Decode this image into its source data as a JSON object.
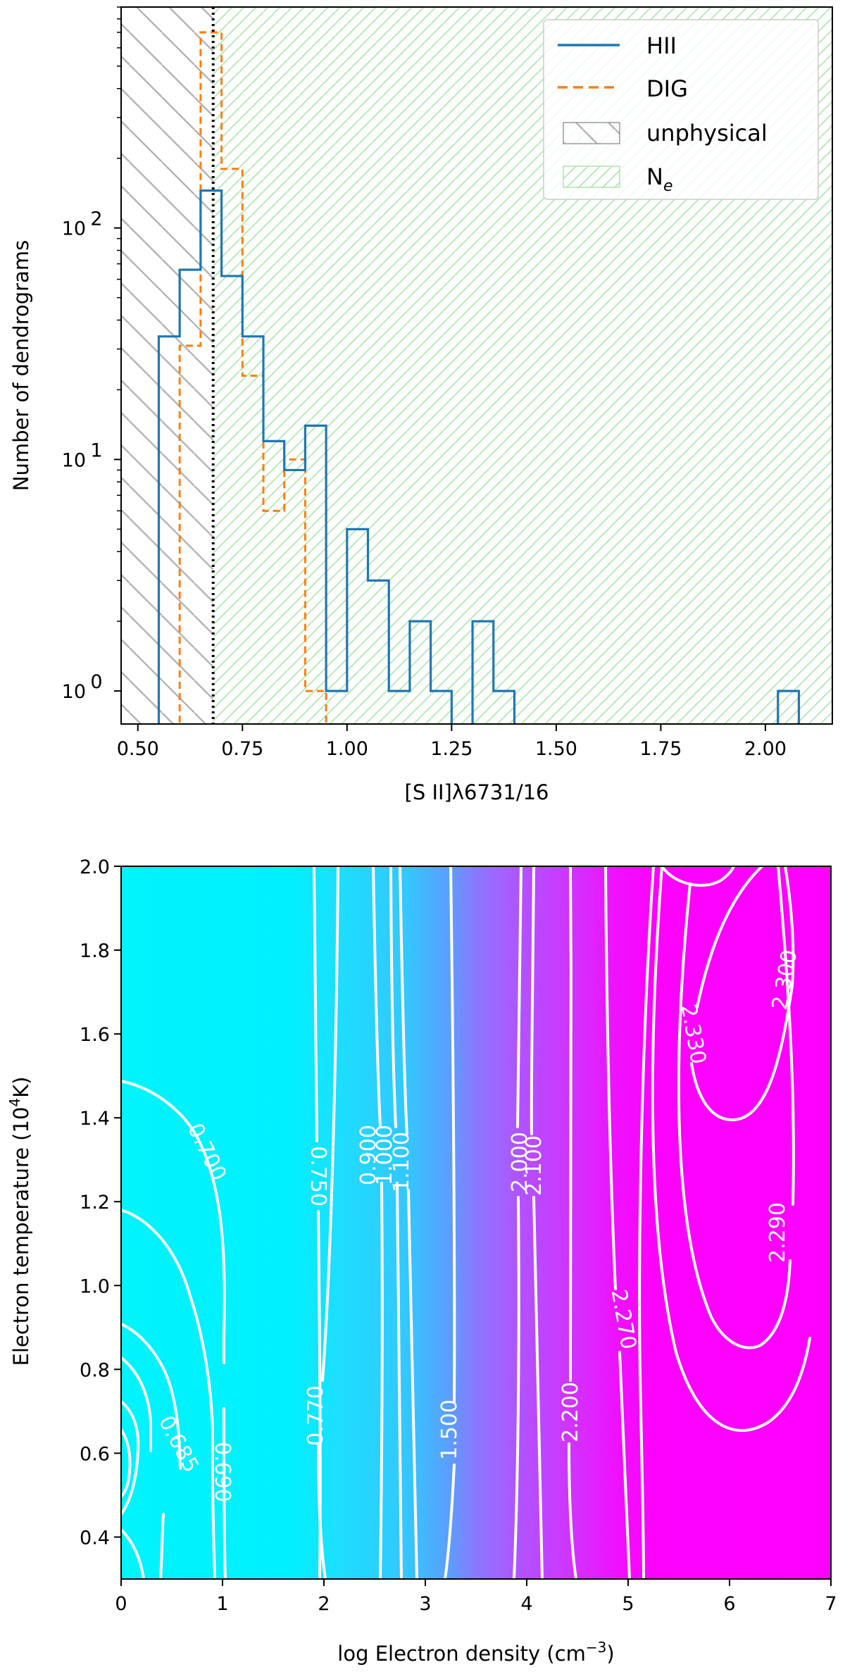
{
  "chart_data": [
    {
      "type": "histogram",
      "xlabel": "[S II]λ6731/16",
      "ylabel": "Number of dendrograms",
      "yscale": "log",
      "xlim": [
        0.46,
        2.16
      ],
      "ylim": [
        0.72,
        900
      ],
      "xticks": [
        0.5,
        0.75,
        1.0,
        1.25,
        1.5,
        1.75,
        2.0
      ],
      "xtick_labels": [
        "0.50",
        "0.75",
        "1.00",
        "1.25",
        "1.50",
        "1.75",
        "2.00"
      ],
      "yticks": [
        1,
        10,
        100
      ],
      "ytick_labels": [
        "10",
        "10",
        "10"
      ],
      "ytick_exponents": [
        "0",
        "1",
        "2"
      ],
      "reference_line_x": 0.68,
      "shaded_regions": [
        {
          "name": "unphysical",
          "x_range": [
            0.46,
            0.68
          ],
          "color": "#b0b0b0"
        },
        {
          "name": "Ne",
          "x_range": [
            0.68,
            2.16
          ],
          "color": "#90e090"
        }
      ],
      "legend_position": "top-right",
      "legend": [
        {
          "label": "HII",
          "style": "solid-line",
          "color": "#1f77b4"
        },
        {
          "label": "DIG",
          "style": "dashed-line",
          "color": "#ff7f0e"
        },
        {
          "label": "unphysical",
          "style": "hatch-box",
          "color": "#909090"
        },
        {
          "label": "N",
          "subscript": "e",
          "style": "hatch-box",
          "color": "#8fdc8f"
        }
      ],
      "series": [
        {
          "name": "HII",
          "color": "#1f77b4",
          "style": "step-solid",
          "bins": [
            {
              "x0": 0.55,
              "x1": 0.6,
              "count": 34
            },
            {
              "x0": 0.6,
              "x1": 0.65,
              "count": 66
            },
            {
              "x0": 0.65,
              "x1": 0.7,
              "count": 145
            },
            {
              "x0": 0.7,
              "x1": 0.75,
              "count": 62
            },
            {
              "x0": 0.75,
              "x1": 0.8,
              "count": 34
            },
            {
              "x0": 0.8,
              "x1": 0.85,
              "count": 12
            },
            {
              "x0": 0.85,
              "x1": 0.9,
              "count": 9
            },
            {
              "x0": 0.9,
              "x1": 0.95,
              "count": 14
            },
            {
              "x0": 0.95,
              "x1": 1.0,
              "count": 1
            },
            {
              "x0": 1.0,
              "x1": 1.05,
              "count": 5
            },
            {
              "x0": 1.05,
              "x1": 1.1,
              "count": 3
            },
            {
              "x0": 1.1,
              "x1": 1.15,
              "count": 1
            },
            {
              "x0": 1.15,
              "x1": 1.2,
              "count": 2
            },
            {
              "x0": 1.2,
              "x1": 1.25,
              "count": 1
            },
            {
              "x0": 1.25,
              "x1": 1.3,
              "count": 0
            },
            {
              "x0": 1.3,
              "x1": 1.35,
              "count": 2
            },
            {
              "x0": 1.35,
              "x1": 1.4,
              "count": 1
            },
            {
              "x0": 2.03,
              "x1": 2.08,
              "count": 1
            }
          ]
        },
        {
          "name": "DIG",
          "color": "#ff7f0e",
          "style": "step-dashed",
          "bins": [
            {
              "x0": 0.6,
              "x1": 0.65,
              "count": 31
            },
            {
              "x0": 0.65,
              "x1": 0.7,
              "count": 700
            },
            {
              "x0": 0.7,
              "x1": 0.75,
              "count": 180
            },
            {
              "x0": 0.75,
              "x1": 0.8,
              "count": 23
            },
            {
              "x0": 0.8,
              "x1": 0.85,
              "count": 6
            },
            {
              "x0": 0.85,
              "x1": 0.9,
              "count": 10
            },
            {
              "x0": 0.9,
              "x1": 0.95,
              "count": 1
            }
          ]
        }
      ]
    },
    {
      "type": "contour",
      "xlabel": "log Electron density (cm",
      "xlabel_exponent": "−3",
      "xlabel_suffix": ")",
      "ylabel": "Electron temperature (10",
      "ylabel_exponent": "4",
      "ylabel_suffix": "K)",
      "xlim": [
        0,
        7
      ],
      "ylim": [
        0.3,
        2.0
      ],
      "xticks": [
        0,
        1,
        2,
        3,
        4,
        5,
        6,
        7
      ],
      "xtick_labels": [
        "0",
        "1",
        "2",
        "3",
        "4",
        "5",
        "6",
        "7"
      ],
      "yticks": [
        0.4,
        0.6,
        0.8,
        1.0,
        1.2,
        1.4,
        1.6,
        1.8,
        2.0
      ],
      "ytick_labels": [
        "0.4",
        "0.6",
        "0.8",
        "1.0",
        "1.2",
        "1.4",
        "1.6",
        "1.8",
        "2.0"
      ],
      "colormap": "cool",
      "colormap_stops": [
        "#00ffff",
        "#ff00ff"
      ],
      "line_color": "#ffffff",
      "contour_levels": [
        "0.685",
        "0.690",
        "0.700",
        "0.750",
        "0.770",
        "0.900",
        "1.000",
        "1.100",
        "1.500",
        "2.000",
        "2.100",
        "2.200",
        "2.270",
        "2.290",
        "2.300",
        "2.330"
      ],
      "contour_label_texts": [
        "0.685",
        "0.690",
        "0.700",
        "0.750",
        "0.770",
        "0.900",
        "1.000",
        "1.100",
        "1.500",
        "2.000",
        "2.100",
        "2.200",
        "2.270",
        "2.290",
        "2.300",
        "2.330"
      ]
    }
  ]
}
